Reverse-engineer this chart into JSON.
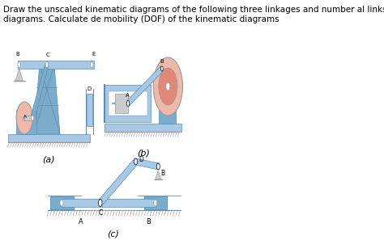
{
  "title_text": "Draw the unscaled kinematic diagrams of the following three linkages and number al links in the drawn kinematic\ndiagrams. Calculate de mobility (DOF) of the kinematic diagrams",
  "title_fontsize": 7.5,
  "bg_color": "#ffffff",
  "label_a": "(a)",
  "label_b": "(b)",
  "label_c": "(c)",
  "fig_width": 4.74,
  "fig_height": 2.97,
  "dpi": 100,
  "blue_light": "#a8c8e8",
  "blue_med": "#7aaccc",
  "blue_dark": "#5890b0",
  "gray_light": "#cccccc",
  "gray_med": "#999999",
  "pink_light": "#f0b8a8",
  "pink_dark": "#e08878",
  "teal": "#6ab8b8",
  "white": "#ffffff",
  "black": "#000000"
}
